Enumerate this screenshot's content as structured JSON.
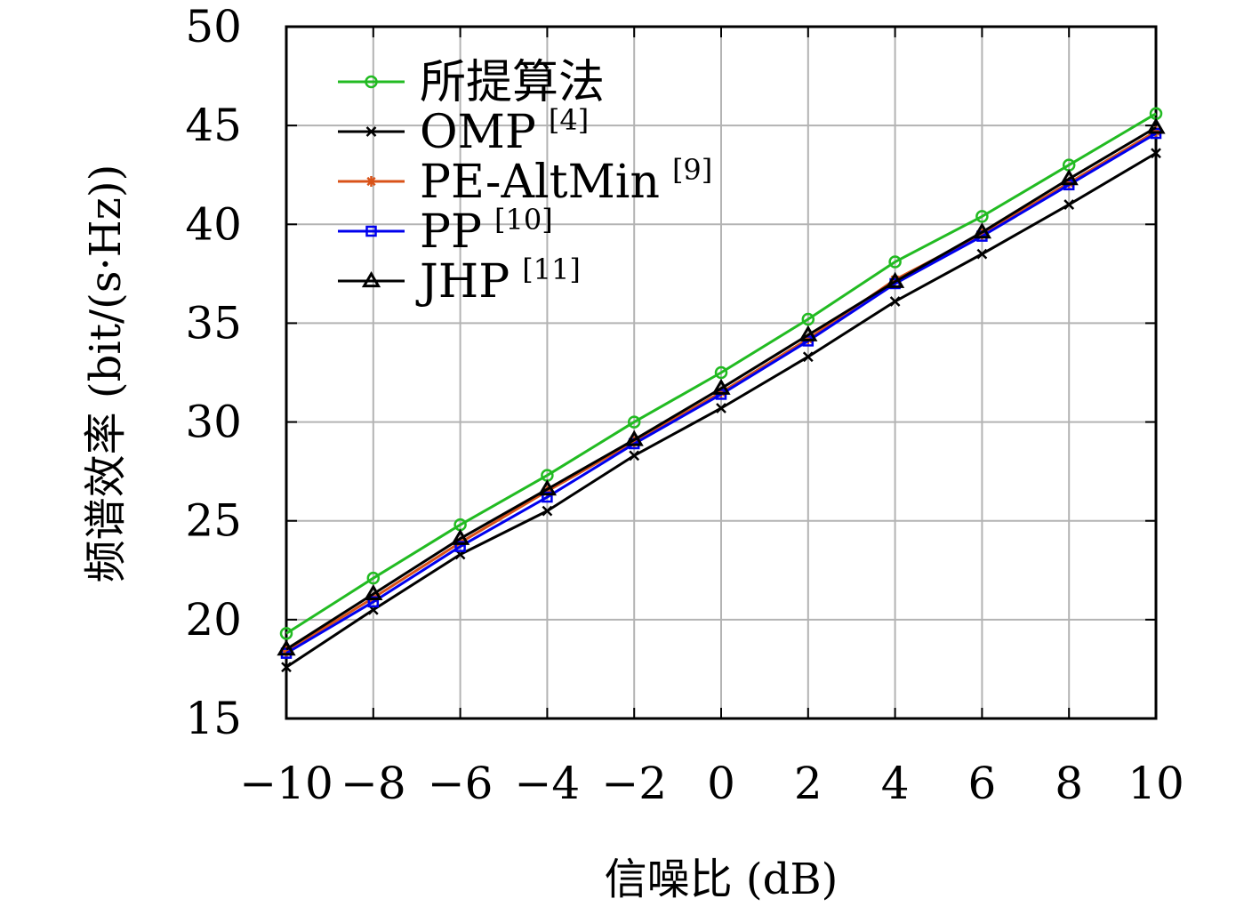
{
  "chart_data": {
    "type": "line",
    "xlabel": "信噪比 (dB)",
    "ylabel": "频谱效率 (bit/(s·Hz))",
    "x": [
      -10,
      -8,
      -6,
      -4,
      -2,
      0,
      2,
      4,
      6,
      8,
      10
    ],
    "x_tick_labels": [
      "−10",
      "−8",
      "−6",
      "−4",
      "−2",
      "0",
      "2",
      "4",
      "6",
      "8",
      "10"
    ],
    "xlim": [
      -10,
      10
    ],
    "ylim": [
      15,
      50
    ],
    "y_ticks": [
      15,
      20,
      25,
      30,
      35,
      40,
      45,
      50
    ],
    "grid": true,
    "legend_position": "top-left",
    "series": [
      {
        "name": "所提算法",
        "ref": "",
        "color": "#22bb22",
        "marker": "circle",
        "values": [
          19.3,
          22.1,
          24.8,
          27.3,
          30.0,
          32.5,
          35.2,
          38.1,
          40.4,
          43.0,
          45.6
        ]
      },
      {
        "name": "OMP",
        "ref": "[4]",
        "color": "#000000",
        "marker": "x",
        "values": [
          17.6,
          20.5,
          23.3,
          25.5,
          28.3,
          30.7,
          33.3,
          36.1,
          38.5,
          41.0,
          43.6
        ]
      },
      {
        "name": "PE-AltMin",
        "ref": "[9]",
        "color": "#d95319",
        "marker": "asterisk",
        "values": [
          18.4,
          21.1,
          23.9,
          26.5,
          29.0,
          31.5,
          34.2,
          37.2,
          39.5,
          42.1,
          44.7
        ]
      },
      {
        "name": "PP",
        "ref": "[10]",
        "color": "#0000ee",
        "marker": "square",
        "values": [
          18.3,
          20.9,
          23.7,
          26.2,
          28.9,
          31.4,
          34.1,
          37.0,
          39.4,
          42.0,
          44.6
        ]
      },
      {
        "name": "JHP",
        "ref": "[11]",
        "color": "#000000",
        "marker": "triangle",
        "values": [
          18.5,
          21.3,
          24.1,
          26.6,
          29.1,
          31.7,
          34.4,
          37.1,
          39.6,
          42.3,
          44.9
        ]
      }
    ]
  }
}
